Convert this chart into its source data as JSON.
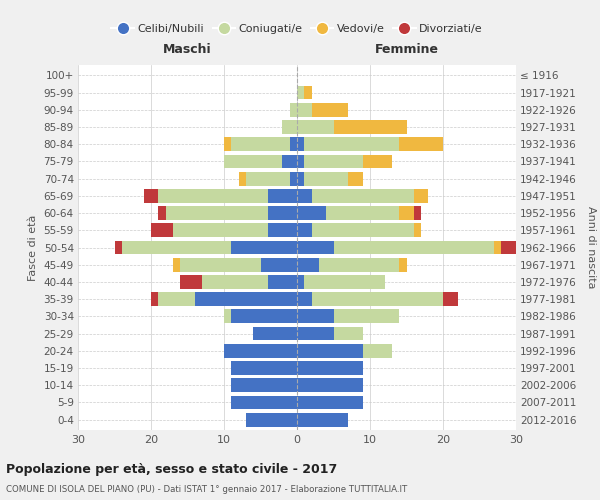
{
  "age_groups": [
    "100+",
    "95-99",
    "90-94",
    "85-89",
    "80-84",
    "75-79",
    "70-74",
    "65-69",
    "60-64",
    "55-59",
    "50-54",
    "45-49",
    "40-44",
    "35-39",
    "30-34",
    "25-29",
    "20-24",
    "15-19",
    "10-14",
    "5-9",
    "0-4"
  ],
  "birth_years": [
    "≤ 1916",
    "1917-1921",
    "1922-1926",
    "1927-1931",
    "1932-1936",
    "1937-1941",
    "1942-1946",
    "1947-1951",
    "1952-1956",
    "1957-1961",
    "1962-1966",
    "1967-1971",
    "1972-1976",
    "1977-1981",
    "1982-1986",
    "1987-1991",
    "1992-1996",
    "1997-2001",
    "2002-2006",
    "2007-2011",
    "2012-2016"
  ],
  "males": {
    "celibi": [
      0,
      0,
      0,
      0,
      1,
      2,
      1,
      4,
      4,
      4,
      9,
      5,
      4,
      14,
      9,
      6,
      10,
      9,
      9,
      9,
      7
    ],
    "coniugati": [
      0,
      0,
      1,
      2,
      8,
      8,
      6,
      15,
      14,
      13,
      15,
      11,
      9,
      5,
      1,
      0,
      0,
      0,
      0,
      0,
      0
    ],
    "vedovi": [
      0,
      0,
      0,
      0,
      1,
      0,
      1,
      0,
      0,
      0,
      0,
      1,
      0,
      0,
      0,
      0,
      0,
      0,
      0,
      0,
      0
    ],
    "divorziati": [
      0,
      0,
      0,
      0,
      0,
      0,
      0,
      2,
      1,
      3,
      1,
      0,
      3,
      1,
      0,
      0,
      0,
      0,
      0,
      0,
      0
    ]
  },
  "females": {
    "nubili": [
      0,
      0,
      0,
      0,
      1,
      1,
      1,
      2,
      4,
      2,
      5,
      3,
      1,
      2,
      5,
      5,
      9,
      9,
      9,
      9,
      7
    ],
    "coniugate": [
      0,
      1,
      2,
      5,
      13,
      8,
      6,
      14,
      10,
      14,
      22,
      11,
      11,
      18,
      9,
      4,
      4,
      0,
      0,
      0,
      0
    ],
    "vedove": [
      0,
      1,
      5,
      10,
      6,
      4,
      2,
      2,
      2,
      1,
      1,
      1,
      0,
      0,
      0,
      0,
      0,
      0,
      0,
      0,
      0
    ],
    "divorziate": [
      0,
      0,
      0,
      0,
      0,
      0,
      0,
      0,
      1,
      0,
      2,
      0,
      0,
      2,
      0,
      0,
      0,
      0,
      0,
      0,
      0
    ]
  },
  "colors": {
    "celibi": "#4472C4",
    "coniugati": "#C5D9A0",
    "vedovi": "#F0B840",
    "divorziati": "#C0393B"
  },
  "xlim": 30,
  "title": "Popolazione per età, sesso e stato civile - 2017",
  "subtitle": "COMUNE DI ISOLA DEL PIANO (PU) - Dati ISTAT 1° gennaio 2017 - Elaborazione TUTTITALIA.IT",
  "xlabel_left": "Maschi",
  "xlabel_right": "Femmine",
  "ylabel": "Fasce di età",
  "ylabel_right": "Anni di nascita",
  "bg_color": "#f0f0f0",
  "plot_bg": "#ffffff",
  "legend_labels": [
    "Celibi/Nubili",
    "Coniugati/e",
    "Vedovi/e",
    "Divorziati/e"
  ]
}
